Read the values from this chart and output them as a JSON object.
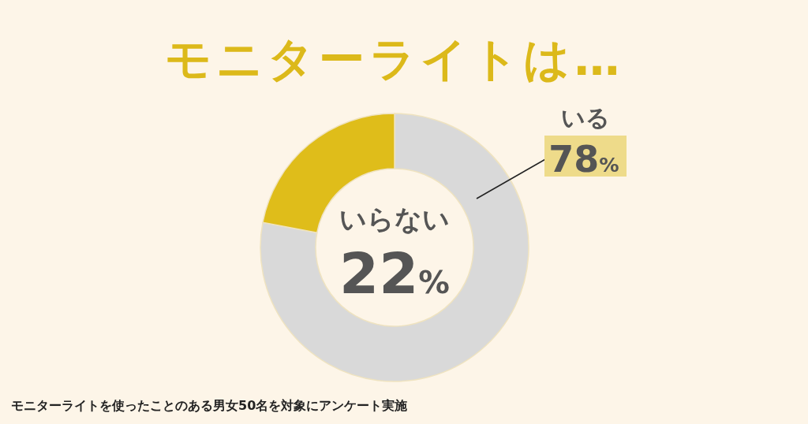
{
  "chart_data": {
    "type": "donut",
    "title": "モニターライトは…",
    "categories": [
      "いる",
      "いらない"
    ],
    "values": [
      78,
      22
    ],
    "colors": [
      "#d9d9d9",
      "#dfbd1a"
    ],
    "value_labels": [
      "78%",
      "22%"
    ],
    "annotations": [
      "モニターライトを使ったことのある男女50名を対象にアンケート実施"
    ]
  }
}
